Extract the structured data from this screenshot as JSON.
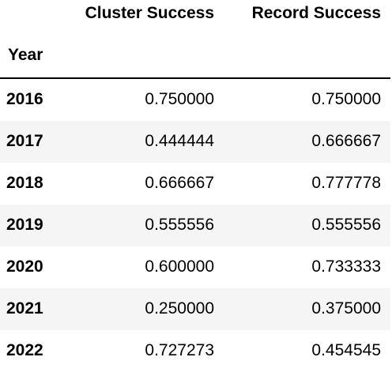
{
  "table": {
    "columns": [
      "Cluster Success",
      "Record Success"
    ],
    "index_name": "Year",
    "rows": [
      {
        "year": "2016",
        "cluster": "0.750000",
        "record": "0.750000"
      },
      {
        "year": "2017",
        "cluster": "0.444444",
        "record": "0.666667"
      },
      {
        "year": "2018",
        "cluster": "0.666667",
        "record": "0.777778"
      },
      {
        "year": "2019",
        "cluster": "0.555556",
        "record": "0.555556"
      },
      {
        "year": "2020",
        "cluster": "0.600000",
        "record": "0.733333"
      },
      {
        "year": "2021",
        "cluster": "0.250000",
        "record": "0.375000"
      },
      {
        "year": "2022",
        "cluster": "0.727273",
        "record": "0.454545"
      }
    ]
  },
  "colors": {
    "stripe": "#f5f5f5",
    "background": "#ffffff",
    "text": "#000000"
  }
}
